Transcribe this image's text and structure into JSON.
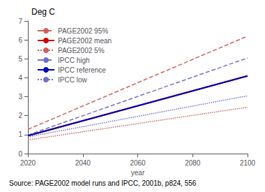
{
  "chart_data": {
    "type": "line",
    "title": "Deg C",
    "xlabel": "year",
    "annotations": [
      "Source: PAGE2002 model runs and IPCC, 2001b, p824, 556"
    ],
    "x": [
      2020,
      2100
    ],
    "series": [
      {
        "name": "PAGE2002 95%",
        "color": "#d06060",
        "line_style": "dashed",
        "values": [
          1.28,
          6.2
        ]
      },
      {
        "name": "PAGE2002 mean",
        "color": "#cc0000",
        "line_style": "solid",
        "values": [
          0.95,
          4.1
        ]
      },
      {
        "name": "PAGE2002 5%",
        "color": "#d06060",
        "line_style": "dotted",
        "values": [
          0.72,
          2.45
        ]
      },
      {
        "name": "IPCC high",
        "color": "#7070cc",
        "line_style": "dashed",
        "values": [
          0.98,
          5.05
        ]
      },
      {
        "name": "IPCC reference",
        "color": "#0000bb",
        "line_style": "solid",
        "values": [
          0.94,
          4.1
        ]
      },
      {
        "name": "IPCC low",
        "color": "#7070cc",
        "line_style": "dotted",
        "values": [
          0.88,
          3.05
        ]
      }
    ],
    "xlim": [
      2020,
      2100
    ],
    "xticks": [
      2020,
      2040,
      2060,
      2080,
      2100
    ],
    "ylim": [
      0,
      7
    ],
    "yticks": [
      0,
      1,
      2,
      3,
      4,
      5,
      6,
      7
    ],
    "grid": false,
    "legend": "upper left"
  }
}
